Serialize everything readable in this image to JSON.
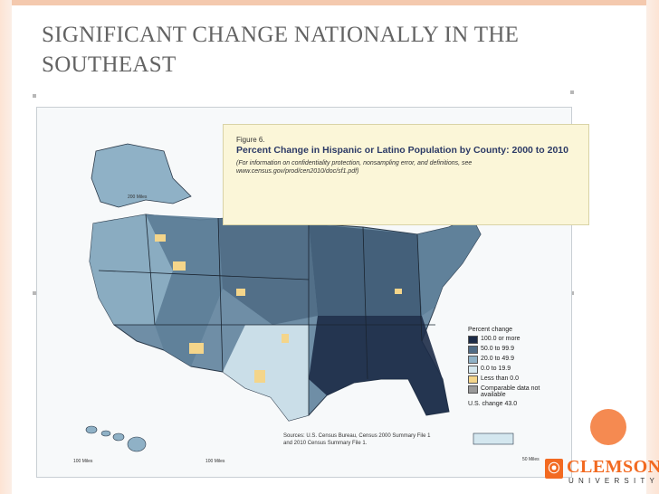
{
  "slide": {
    "title": "SIGNIFICANT CHANGE NATIONALLY IN THE SOUTHEAST"
  },
  "figure": {
    "label": "Figure 6.",
    "title": "Percent Change in Hispanic or Latino Population by County: 2000 to 2010",
    "note": "(For information on confidentiality protection, nonsampling error, and definitions, see www.census.gov/prod/cen2010/doc/sf1.pdf)"
  },
  "legend": {
    "title": "Percent change",
    "items": [
      {
        "label": "100.0 or more",
        "color": "#1c2b47"
      },
      {
        "label": "50.0 to 99.9",
        "color": "#4f6b85"
      },
      {
        "label": "20.0 to 49.9",
        "color": "#8fb1c6"
      },
      {
        "label": "0.0 to 19.9",
        "color": "#d4e7ef"
      },
      {
        "label": "Less than 0.0",
        "color": "#f4d58a"
      },
      {
        "label": "Comparable data not available",
        "color": "#9a9a9a"
      }
    ],
    "total": "U.S. change 43.0"
  },
  "source": {
    "text": "Sources: U.S. Census Bureau, Census 2000 Summary File 1 and 2010 Census Summary File 1."
  },
  "scales": {
    "alaska": "200 Miles",
    "hawaii": "100 Miles",
    "hawaii2": "100 Miles",
    "pr": "50 Miles"
  },
  "logo": {
    "mark": "⦿",
    "name": "CLEMSON",
    "sub": "UNIVERSITY"
  }
}
